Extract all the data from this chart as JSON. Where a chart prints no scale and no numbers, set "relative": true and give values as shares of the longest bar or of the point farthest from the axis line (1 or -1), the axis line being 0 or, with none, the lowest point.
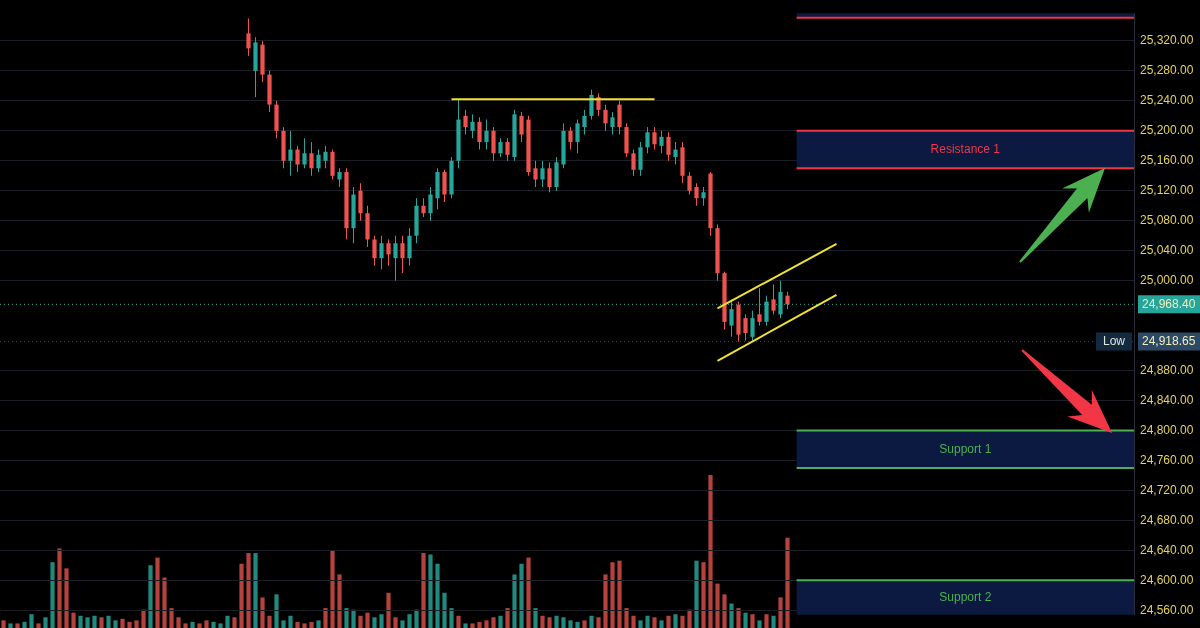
{
  "chart_data": [
    {
      "type": "candlestick",
      "tick_labels": "y",
      "grid": "y",
      "ylim": [
        24554,
        25357
      ],
      "yticks": [
        {
          "value": 24560,
          "label": "24,560.00"
        },
        {
          "value": 24600,
          "label": "24,600.00"
        },
        {
          "value": 24640,
          "label": "24,640.00"
        },
        {
          "value": 24680,
          "label": "24,680.00"
        },
        {
          "value": 24720,
          "label": "24,720.00"
        },
        {
          "value": 24760,
          "label": "24,760.00"
        },
        {
          "value": 24800,
          "label": "24,800.00"
        },
        {
          "value": 24840,
          "label": "24,840.00"
        },
        {
          "value": 24880,
          "label": "24,880.00"
        },
        {
          "value": 25000,
          "label": "25,000.00"
        },
        {
          "value": 25040,
          "label": "25,040.00"
        },
        {
          "value": 25080,
          "label": "25,080.00"
        },
        {
          "value": 25120,
          "label": "25,120.00"
        },
        {
          "value": 25160,
          "label": "25,160.00"
        },
        {
          "value": 25200,
          "label": "25,200.00"
        },
        {
          "value": 25240,
          "label": "25,240.00"
        },
        {
          "value": 25280,
          "label": "25,280.00"
        },
        {
          "value": 25320,
          "label": "25,320.00"
        }
      ],
      "categories": [
        null,
        null,
        null,
        null,
        null,
        null,
        null,
        null,
        null,
        null,
        null,
        null,
        null,
        null,
        null,
        null,
        null,
        null,
        null,
        null,
        null,
        null,
        null,
        null,
        null,
        null,
        null,
        null,
        null,
        null,
        null,
        null,
        null,
        null,
        null,
        null,
        null,
        null,
        null,
        null,
        null,
        null,
        null,
        null,
        null,
        null,
        null,
        null,
        null,
        null,
        null,
        null,
        null,
        null,
        null,
        null,
        null,
        null,
        null,
        null,
        null,
        null,
        null,
        null,
        null,
        null,
        null,
        null,
        null,
        null,
        null,
        null,
        null,
        null,
        null,
        null,
        null,
        null,
        null,
        null,
        null,
        null,
        null,
        null,
        null,
        null,
        null,
        null,
        null,
        null,
        null,
        null,
        null,
        null,
        null,
        null,
        null,
        null,
        null,
        null,
        null,
        null,
        null,
        null,
        null,
        null,
        null,
        null,
        null,
        null,
        null,
        null,
        null,
        null,
        null,
        null,
        null,
        null,
        null,
        null,
        null,
        null,
        null,
        null,
        null,
        null,
        null,
        null,
        null,
        null,
        null,
        null,
        null,
        null,
        null,
        null,
        null,
        null,
        null,
        null,
        null,
        null,
        null,
        null,
        null,
        null,
        null,
        null,
        null,
        null,
        null,
        null,
        null,
        null,
        null,
        null,
        null,
        null,
        null,
        null,
        null,
        null
      ],
      "ohlc": [
        null,
        null,
        null,
        null,
        null,
        null,
        null,
        null,
        null,
        null,
        null,
        null,
        null,
        null,
        null,
        null,
        null,
        null,
        null,
        null,
        null,
        null,
        null,
        null,
        null,
        null,
        null,
        null,
        null,
        null,
        null,
        null,
        null,
        null,
        null,
        [
          25330,
          25350,
          25300,
          25310
        ],
        [
          25280,
          25325,
          25245,
          25318
        ],
        [
          25315,
          25320,
          25265,
          25275
        ],
        [
          25275,
          25280,
          25225,
          25235
        ],
        [
          25235,
          25240,
          25190,
          25200
        ],
        [
          25200,
          25205,
          25150,
          25160
        ],
        [
          25160,
          25200,
          25140,
          25175
        ],
        [
          25175,
          25180,
          25145,
          25155
        ],
        [
          25155,
          25190,
          25150,
          25170
        ],
        [
          25170,
          25185,
          25140,
          25150
        ],
        [
          25150,
          25175,
          25145,
          25168
        ],
        [
          25160,
          25180,
          25150,
          25172
        ],
        [
          25172,
          25175,
          25135,
          25140
        ],
        [
          25135,
          25150,
          25125,
          25145
        ],
        [
          25145,
          25150,
          25055,
          25070
        ],
        [
          25070,
          25125,
          25050,
          25115
        ],
        [
          25120,
          25130,
          25080,
          25090
        ],
        [
          25090,
          25100,
          25045,
          25055
        ],
        [
          25055,
          25060,
          25020,
          25030
        ],
        [
          25030,
          25060,
          25015,
          25050
        ],
        [
          25050,
          25055,
          25020,
          25035
        ],
        [
          25030,
          25060,
          25000,
          25050
        ],
        [
          25050,
          25060,
          25010,
          25030
        ],
        [
          25030,
          25070,
          25020,
          25060
        ],
        [
          25060,
          25110,
          25050,
          25100
        ],
        [
          25100,
          25110,
          25085,
          25090
        ],
        [
          25090,
          25125,
          25080,
          25115
        ],
        [
          25110,
          25150,
          25095,
          25145
        ],
        [
          25145,
          25148,
          25105,
          25115
        ],
        [
          25115,
          25165,
          25110,
          25160
        ],
        [
          25160,
          25242,
          25150,
          25215
        ],
        [
          25220,
          25228,
          25195,
          25205
        ],
        [
          25200,
          25222,
          25190,
          25212
        ],
        [
          25212,
          25218,
          25175,
          25185
        ],
        [
          25185,
          25215,
          25175,
          25200
        ],
        [
          25200,
          25205,
          25160,
          25170
        ],
        [
          25170,
          25190,
          25165,
          25185
        ],
        [
          25185,
          25190,
          25160,
          25168
        ],
        [
          25165,
          25228,
          25160,
          25222
        ],
        [
          25220,
          25225,
          25185,
          25195
        ],
        [
          25215,
          25220,
          25140,
          25145
        ],
        [
          25150,
          25160,
          25125,
          25135
        ],
        [
          25135,
          25160,
          25125,
          25150
        ],
        [
          25150,
          25158,
          25118,
          25125
        ],
        [
          25125,
          25165,
          25120,
          25158
        ],
        [
          25155,
          25210,
          25150,
          25200
        ],
        [
          25200,
          25205,
          25175,
          25185
        ],
        [
          25185,
          25215,
          25170,
          25210
        ],
        [
          25205,
          25228,
          25195,
          25220
        ],
        [
          25220,
          25255,
          25215,
          25248
        ],
        [
          25245,
          25250,
          25220,
          25228
        ],
        [
          25228,
          25235,
          25200,
          25210
        ],
        [
          25205,
          25225,
          25195,
          25218
        ],
        [
          25235,
          25240,
          25195,
          25205
        ],
        [
          25205,
          25210,
          25165,
          25170
        ],
        [
          25170,
          25175,
          25140,
          25148
        ],
        [
          25148,
          25185,
          25140,
          25178
        ],
        [
          25178,
          25205,
          25170,
          25198
        ],
        [
          25198,
          25205,
          25175,
          25182
        ],
        [
          25180,
          25200,
          25170,
          25192
        ],
        [
          25192,
          25198,
          25160,
          25168
        ],
        [
          25165,
          25185,
          25155,
          25175
        ],
        [
          25178,
          25185,
          25130,
          25140
        ],
        [
          25140,
          25145,
          25115,
          25120
        ],
        [
          25125,
          25130,
          25100,
          25110
        ],
        [
          25110,
          25125,
          25100,
          25118
        ],
        [
          25143,
          25145,
          25060,
          25070
        ],
        [
          25070,
          25075,
          25000,
          25010
        ],
        [
          25010,
          25012,
          24935,
          24945
        ],
        [
          24940,
          24975,
          24925,
          24962
        ],
        [
          24968,
          24972,
          24918.65,
          24928
        ],
        [
          24950,
          24955,
          24920,
          24930
        ],
        [
          24925,
          24960,
          24920,
          24950
        ],
        [
          24955,
          24990,
          24940,
          24945
        ],
        [
          24945,
          24980,
          24940,
          24972
        ],
        [
          24975,
          24995,
          24955,
          24960
        ],
        [
          24955,
          25000,
          24950,
          24985
        ],
        [
          24980,
          24985,
          24962,
          24968.4
        ],
        null,
        null,
        null,
        null,
        null,
        null,
        null,
        null,
        null,
        null,
        null,
        null,
        null,
        null,
        null,
        null,
        null,
        null,
        null,
        null,
        null,
        null,
        null,
        null,
        null,
        null,
        null,
        null,
        null,
        null,
        null,
        null,
        null,
        null,
        null,
        null,
        null,
        null,
        null,
        null,
        null,
        null,
        null,
        null,
        null,
        null,
        null,
        null,
        null
      ],
      "colors": [
        null,
        null,
        null,
        null,
        null,
        null,
        null,
        null,
        null,
        null,
        null,
        null,
        null,
        null,
        null,
        null,
        null,
        null,
        null,
        null,
        null,
        null,
        null,
        null,
        null,
        null,
        null,
        null,
        null,
        null,
        null,
        null,
        null,
        null,
        null,
        "#ef5350",
        "#26a69a",
        "#ef5350",
        "#ef5350",
        "#ef5350",
        "#ef5350",
        "#26a69a",
        "#ef5350",
        "#26a69a",
        "#ef5350",
        "#26a69a",
        "#26a69a",
        "#ef5350",
        "#26a69a",
        "#ef5350",
        "#26a69a",
        "#ef5350",
        "#ef5350",
        "#ef5350",
        "#26a69a",
        "#ef5350",
        "#26a69a",
        "#ef5350",
        "#26a69a",
        "#26a69a",
        "#ef5350",
        "#26a69a",
        "#26a69a",
        "#ef5350",
        "#26a69a",
        "#26a69a",
        "#ef5350",
        "#26a69a",
        "#ef5350",
        "#26a69a",
        "#ef5350",
        "#26a69a",
        "#ef5350",
        "#26a69a",
        "#ef5350",
        "#ef5350",
        "#ef5350",
        "#26a69a",
        "#ef5350",
        "#26a69a",
        "#26a69a",
        "#ef5350",
        "#26a69a",
        "#26a69a",
        "#26a69a",
        "#ef5350",
        "#ef5350",
        "#26a69a",
        "#ef5350",
        "#ef5350",
        "#ef5350",
        "#26a69a",
        "#26a69a",
        "#ef5350",
        "#26a69a",
        "#ef5350",
        "#26a69a",
        "#ef5350",
        "#ef5350",
        "#ef5350",
        "#26a69a",
        "#ef5350",
        "#ef5350",
        "#ef5350",
        "#26a69a",
        "#ef5350",
        "#ef5350",
        "#26a69a",
        "#ef5350",
        "#26a69a",
        "#ef5350",
        "#26a69a",
        "#ef5350",
        null,
        null,
        null,
        null,
        null,
        null,
        null,
        null,
        null,
        null,
        null,
        null,
        null,
        null,
        null,
        null,
        null,
        null,
        null,
        null,
        null,
        null,
        null,
        null,
        null,
        null,
        null,
        null,
        null,
        null,
        null,
        null,
        null,
        null,
        null,
        null,
        null,
        null,
        null,
        null,
        null,
        null,
        null,
        null,
        null,
        null,
        null,
        null,
        null
      ],
      "series": [
        {
          "type": "line",
          "color": "#f0e130",
          "values": [
            null,
            null,
            null,
            null,
            null,
            null,
            null,
            null,
            null,
            null,
            null,
            null,
            null,
            null,
            null,
            null,
            null,
            null,
            null,
            null,
            null,
            null,
            null,
            null,
            null,
            null,
            null,
            null,
            null,
            null,
            null,
            null,
            null,
            null,
            null,
            null,
            null,
            null,
            null,
            null,
            null,
            null,
            null,
            null,
            null,
            null,
            null,
            null,
            null,
            null,
            null,
            null,
            null,
            null,
            null,
            null,
            null,
            null,
            null,
            null,
            null,
            null,
            null,
            null,
            25242,
            null,
            null,
            null,
            null,
            null,
            null,
            null,
            null,
            null,
            null,
            null,
            null,
            null,
            null,
            null,
            null,
            null,
            null,
            null,
            null,
            null,
            null,
            null,
            null,
            null,
            null,
            null,
            null,
            25242,
            null,
            null,
            null,
            null,
            null,
            null,
            null,
            null,
            null,
            null,
            null,
            null,
            null,
            null,
            null,
            null,
            null,
            null,
            null,
            null,
            null,
            null,
            null,
            null,
            null,
            null,
            null,
            null,
            null,
            null,
            null,
            null,
            null,
            null,
            null,
            null,
            null,
            null,
            null,
            null,
            null,
            null,
            null,
            null,
            null,
            null,
            null,
            null,
            null,
            null,
            null,
            null,
            null,
            null,
            null,
            null,
            null,
            null,
            null,
            null,
            null,
            null,
            null,
            null,
            null,
            null,
            null,
            null
          ]
        },
        {
          "type": "line",
          "color": "#f0e130",
          "values": [
            null,
            null,
            null,
            null,
            null,
            null,
            null,
            null,
            null,
            null,
            null,
            null,
            null,
            null,
            null,
            null,
            null,
            null,
            null,
            null,
            null,
            null,
            null,
            null,
            null,
            null,
            null,
            null,
            null,
            null,
            null,
            null,
            null,
            null,
            null,
            null,
            null,
            null,
            null,
            null,
            null,
            null,
            null,
            null,
            null,
            null,
            null,
            null,
            null,
            null,
            null,
            null,
            null,
            null,
            null,
            null,
            null,
            null,
            null,
            null,
            null,
            null,
            null,
            null,
            null,
            null,
            null,
            null,
            null,
            null,
            null,
            null,
            null,
            null,
            null,
            null,
            null,
            null,
            null,
            null,
            null,
            null,
            null,
            null,
            null,
            null,
            null,
            null,
            null,
            null,
            null,
            null,
            null,
            null,
            null,
            null,
            null,
            null,
            null,
            null,
            null,
            null,
            24963,
            null,
            null,
            null,
            null,
            null,
            null,
            null,
            null,
            null,
            null,
            null,
            null,
            null,
            null,
            null,
            null,
            25049,
            null,
            null,
            null,
            null,
            null,
            null,
            null,
            null,
            null,
            null,
            null,
            null,
            null,
            null,
            null,
            null,
            null,
            null,
            null,
            null,
            null,
            null,
            null,
            null,
            null,
            null,
            null,
            null,
            null,
            null,
            null,
            null,
            null,
            null,
            null,
            null,
            null,
            null,
            null,
            null,
            null,
            null
          ]
        },
        {
          "type": "line",
          "color": "#f0e130",
          "values": [
            null,
            null,
            null,
            null,
            null,
            null,
            null,
            null,
            null,
            null,
            null,
            null,
            null,
            null,
            null,
            null,
            null,
            null,
            null,
            null,
            null,
            null,
            null,
            null,
            null,
            null,
            null,
            null,
            null,
            null,
            null,
            null,
            null,
            null,
            null,
            null,
            null,
            null,
            null,
            null,
            null,
            null,
            null,
            null,
            null,
            null,
            null,
            null,
            null,
            null,
            null,
            null,
            null,
            null,
            null,
            null,
            null,
            null,
            null,
            null,
            null,
            null,
            null,
            null,
            null,
            null,
            null,
            null,
            null,
            null,
            null,
            null,
            null,
            null,
            null,
            null,
            null,
            null,
            null,
            null,
            null,
            null,
            null,
            null,
            null,
            null,
            null,
            null,
            null,
            null,
            null,
            null,
            null,
            null,
            null,
            null,
            null,
            null,
            null,
            null,
            null,
            null,
            24893,
            null,
            null,
            null,
            null,
            null,
            null,
            null,
            null,
            null,
            null,
            null,
            null,
            null,
            null,
            null,
            null,
            24981,
            null,
            null,
            null,
            null,
            null,
            null,
            null,
            null,
            null,
            null,
            null,
            null,
            null,
            null,
            null,
            null,
            null,
            null,
            null,
            null,
            null,
            null,
            null,
            null,
            null,
            null,
            null,
            null,
            null,
            null,
            null,
            null,
            null,
            null,
            null,
            null,
            null,
            null,
            null,
            null,
            null,
            null
          ]
        }
      ],
      "bands": [
        {
          "axis": "y",
          "from": 25351,
          "to": 25357,
          "label": null,
          "color": "#0c1a42"
        },
        {
          "axis": "y",
          "from": 25150,
          "to": 25200,
          "label": "Resistance 1",
          "color": "#0c1a42"
        },
        {
          "axis": "y",
          "from": 24750,
          "to": 24800,
          "label": "Support 1",
          "color": "#0c1a42"
        },
        {
          "axis": "y",
          "from": 24554,
          "to": 24600,
          "label": "Support 2",
          "color": "#0c1a42"
        }
      ],
      "ref_lines": [
        {
          "axis": "y",
          "value": 24968.4,
          "label": "24,968.40",
          "color": "#26a69a",
          "line_style": "dotted"
        },
        {
          "axis": "y",
          "value": 24918.65,
          "label": "24,918.65",
          "color": "#2c4a66",
          "line_style": "dotted"
        },
        {
          "axis": "y",
          "value": 25351,
          "label": null,
          "color": "#f23645",
          "line_style": "solid"
        },
        {
          "axis": "y",
          "value": 25200,
          "label": null,
          "color": "#f23645",
          "line_style": "solid"
        },
        {
          "axis": "y",
          "value": 25150,
          "label": null,
          "color": "#f23645",
          "line_style": "solid"
        },
        {
          "axis": "y",
          "value": 24800,
          "label": null,
          "color": "#4caf50",
          "line_style": "solid"
        },
        {
          "axis": "y",
          "value": 24750,
          "label": null,
          "color": "#4caf50",
          "line_style": "solid"
        },
        {
          "axis": "y",
          "value": 24600,
          "label": null,
          "color": "#4caf50",
          "line_style": "solid"
        }
      ],
      "annotations": [
        {
          "text": "Low",
          "y": 24918.65
        }
      ]
    },
    {
      "type": "bar",
      "relative": true,
      "tick_labels": false,
      "categories": [
        null,
        null,
        null,
        null,
        null,
        null,
        null,
        null,
        null,
        null,
        null,
        null,
        null,
        null,
        null,
        null,
        null,
        null,
        null,
        null,
        null,
        null,
        null,
        null,
        null,
        null,
        null,
        null,
        null,
        null,
        null,
        null,
        null,
        null,
        null,
        null,
        null,
        null,
        null,
        null,
        null,
        null,
        null,
        null,
        null,
        null,
        null,
        null,
        null,
        null,
        null,
        null,
        null,
        null,
        null,
        null,
        null,
        null,
        null,
        null,
        null,
        null,
        null,
        null,
        null,
        null,
        null,
        null,
        null,
        null,
        null,
        null,
        null,
        null,
        null,
        null,
        null,
        null,
        null,
        null,
        null,
        null,
        null,
        null,
        null,
        null,
        null,
        null,
        null,
        null,
        null,
        null,
        null,
        null,
        null,
        null,
        null,
        null,
        null,
        null,
        null,
        null,
        null,
        null,
        null,
        null,
        null,
        null,
        null,
        null,
        null,
        null,
        null,
        null,
        null,
        null,
        null,
        null,
        null,
        null,
        null,
        null,
        null,
        null,
        null,
        null,
        null,
        null,
        null,
        null,
        null,
        null,
        null,
        null,
        null,
        null,
        null,
        null,
        null,
        null,
        null,
        null,
        null,
        null,
        null,
        null,
        null,
        null,
        null,
        null,
        null,
        null,
        null,
        null,
        null,
        null,
        null,
        null,
        null,
        null,
        null,
        null
      ],
      "values": [
        0.05,
        0.03,
        0.03,
        0.04,
        0.09,
        0.03,
        0.07,
        0.43,
        0.52,
        0.39,
        0.1,
        0.08,
        0.07,
        0.08,
        0.07,
        0.08,
        0.05,
        0.06,
        0.04,
        0.05,
        0.12,
        0.41,
        0.46,
        0.33,
        0.13,
        0.07,
        0.03,
        0.04,
        0.03,
        0.05,
        0.04,
        0.03,
        0.08,
        0.07,
        0.42,
        0.49,
        0.49,
        0.2,
        0.08,
        0.22,
        0.05,
        0.08,
        0.04,
        0.03,
        0.04,
        0.05,
        0.13,
        0.51,
        0.35,
        0.13,
        0.12,
        0.08,
        0.1,
        0.07,
        0.09,
        0.23,
        0.07,
        0.05,
        0.09,
        0.12,
        0.49,
        0.48,
        0.42,
        0.23,
        0.13,
        0.08,
        0.03,
        0.03,
        0.04,
        0.05,
        0.07,
        0.08,
        0.13,
        0.35,
        0.42,
        0.46,
        0.13,
        0.08,
        0.07,
        0.08,
        0.07,
        0.05,
        0.04,
        0.05,
        0.08,
        0.07,
        0.35,
        0.43,
        0.44,
        0.13,
        0.08,
        0.05,
        0.08,
        0.07,
        0.05,
        0.08,
        0.09,
        0.08,
        0.12,
        0.44,
        0.43,
        1,
        0.29,
        0.22,
        0.16,
        0.13,
        0.1,
        0.09,
        0.05,
        0.09,
        0.08,
        0.2,
        0.59,
        null,
        null,
        null,
        null,
        null,
        null,
        null,
        null,
        null,
        null,
        null,
        null,
        null,
        null,
        null,
        null,
        null,
        null,
        null,
        null,
        null,
        null,
        null,
        null,
        null,
        null,
        null,
        null,
        null,
        null,
        null,
        null,
        null,
        null,
        null,
        null,
        null,
        null,
        null,
        null,
        null,
        null,
        null,
        null,
        null,
        null,
        null,
        null,
        null
      ],
      "colors": [
        "#b5423d",
        "#1f8a7d",
        "#b5423d",
        "#1f8a7d",
        "#1f8a7d",
        "#b5423d",
        "#1f8a7d",
        "#1f8a7d",
        "#b5423d",
        "#b5423d",
        "#b5423d",
        "#1f8a7d",
        "#1f8a7d",
        "#1f8a7d",
        "#b5423d",
        "#1f8a7d",
        "#1f8a7d",
        "#b5423d",
        "#b5423d",
        "#b5423d",
        "#b5423d",
        "#1f8a7d",
        "#b5423d",
        "#b5423d",
        "#b5423d",
        "#b5423d",
        "#b5423d",
        "#1f8a7d",
        "#b5423d",
        "#b5423d",
        "#1f8a7d",
        "#1f8a7d",
        "#1f8a7d",
        "#b5423d",
        "#b5423d",
        "#b5423d",
        "#1f8a7d",
        "#b5423d",
        "#b5423d",
        "#1f8a7d",
        "#1f8a7d",
        "#1f8a7d",
        "#b5423d",
        "#b5423d",
        "#b5423d",
        "#1f8a7d",
        "#b5423d",
        "#b5423d",
        "#b5423d",
        "#1f8a7d",
        "#1f8a7d",
        "#b5423d",
        "#b5423d",
        "#1f8a7d",
        "#1f8a7d",
        "#b5423d",
        "#b5423d",
        "#1f8a7d",
        "#1f8a7d",
        "#1f8a7d",
        "#b5423d",
        "#1f8a7d",
        "#1f8a7d",
        "#1f8a7d",
        "#1f8a7d",
        "#b5423d",
        "#1f8a7d",
        "#b5423d",
        "#b5423d",
        "#b5423d",
        "#b5423d",
        "#1f8a7d",
        "#b5423d",
        "#1f8a7d",
        "#1f8a7d",
        "#b5423d",
        "#1f8a7d",
        "#b5423d",
        "#b5423d",
        "#1f8a7d",
        "#1f8a7d",
        "#1f8a7d",
        "#1f8a7d",
        "#b5423d",
        "#1f8a7d",
        "#b5423d",
        "#b5423d",
        "#b5423d",
        "#b5423d",
        "#b5423d",
        "#b5423d",
        "#1f8a7d",
        "#1f8a7d",
        "#b5423d",
        "#1f8a7d",
        "#b5423d",
        "#1f8a7d",
        "#b5423d",
        "#b5423d",
        "#1f8a7d",
        "#b5423d",
        "#b5423d",
        "#b5423d",
        "#b5423d",
        "#1f8a7d",
        "#b5423d",
        "#1f8a7d",
        "#b5423d",
        "#1f8a7d",
        "#b5423d",
        "#1f8a7d",
        "#b5423d",
        "#b5423d",
        null,
        null,
        null,
        null,
        null,
        null,
        null,
        null,
        null,
        null,
        null,
        null,
        null,
        null,
        null,
        null,
        null,
        null,
        null,
        null,
        null,
        null,
        null,
        null,
        null,
        null,
        null,
        null,
        null,
        null,
        null,
        null,
        null,
        null,
        null,
        null,
        null,
        null,
        null,
        null,
        null,
        null,
        null,
        null,
        null,
        null,
        null,
        null,
        null
      ]
    }
  ]
}
